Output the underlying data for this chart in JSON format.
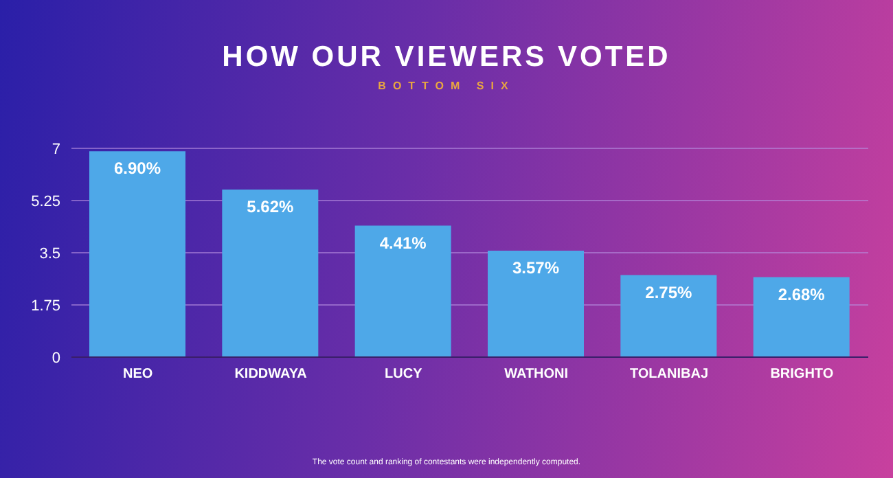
{
  "chart_data": {
    "type": "bar",
    "title": "HOW OUR VIEWERS VOTED",
    "subtitle": "BOTTOM SIX",
    "categories": [
      "NEO",
      "KIDDWAYA",
      "LUCY",
      "WATHONI",
      "TOLANIBAJ",
      "BRIGHTO"
    ],
    "values": [
      6.9,
      5.62,
      4.41,
      3.57,
      2.75,
      2.68
    ],
    "value_labels": [
      "6.90%",
      "5.62%",
      "4.41%",
      "3.57%",
      "2.75%",
      "2.68%"
    ],
    "color": "#4ea8e8",
    "ylim": [
      0,
      7
    ],
    "yticks": [
      0,
      1.75,
      3.5,
      5.25,
      7
    ],
    "grid": "y",
    "annotations": [
      "The vote count and ranking of contestants were independently computed."
    ]
  }
}
